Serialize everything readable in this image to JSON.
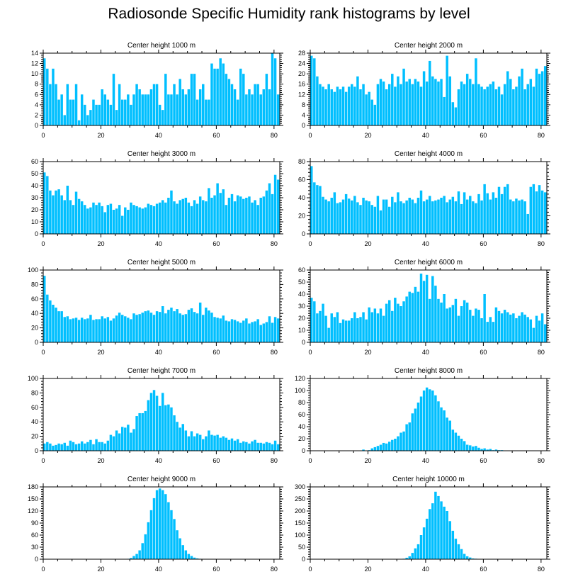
{
  "title": "Radiosonde Specific Humidity rank histograms by level",
  "colors": {
    "bar": "#00bfff",
    "axis": "#000000"
  },
  "chart_data": [
    {
      "type": "bar",
      "title": "Center height 1000 m",
      "xlabel": "",
      "ylabel": "",
      "xlim": [
        0,
        82
      ],
      "xticks": [
        0,
        20,
        40,
        60,
        80
      ],
      "ylim": [
        0,
        14
      ],
      "yticks": [
        0,
        2,
        4,
        6,
        8,
        10,
        12,
        14
      ],
      "x_start": 0,
      "values": [
        13,
        11,
        8,
        11,
        8,
        5,
        6,
        2,
        8,
        5,
        5,
        8,
        1,
        6,
        4,
        2,
        3,
        5,
        4,
        4,
        7,
        6,
        5,
        4,
        10,
        3,
        8,
        5,
        5,
        6,
        4,
        6,
        8,
        7,
        6,
        6,
        6,
        7,
        8,
        8,
        4,
        3,
        10,
        6,
        6,
        8,
        6,
        9,
        7,
        6,
        7,
        10,
        10,
        5,
        7,
        8,
        5,
        5,
        12,
        11,
        11,
        13,
        12,
        10,
        9,
        8,
        7,
        5,
        11,
        10,
        6,
        7,
        6,
        8,
        8,
        6,
        7,
        10,
        7,
        14,
        13,
        6
      ]
    },
    {
      "type": "bar",
      "title": "Center height 2000 m",
      "xlabel": "",
      "ylabel": "",
      "xlim": [
        0,
        82
      ],
      "xticks": [
        0,
        20,
        40,
        60,
        80
      ],
      "ylim": [
        0,
        28
      ],
      "yticks": [
        0,
        4,
        8,
        12,
        16,
        20,
        24,
        28
      ],
      "x_start": 0,
      "values": [
        27,
        26,
        19,
        16,
        15,
        14,
        16,
        14,
        13,
        15,
        14,
        15,
        13,
        15,
        16,
        15,
        19,
        14,
        16,
        12,
        13,
        10,
        8,
        16,
        18,
        17,
        14,
        16,
        20,
        15,
        19,
        16,
        22,
        17,
        18,
        16,
        18,
        17,
        15,
        21,
        17,
        25,
        19,
        18,
        17,
        18,
        11,
        27,
        19,
        9,
        7,
        14,
        17,
        16,
        20,
        18,
        16,
        26,
        16,
        15,
        14,
        15,
        16,
        17,
        14,
        15,
        12,
        16,
        21,
        18,
        14,
        15,
        19,
        22,
        14,
        16,
        18,
        15,
        22,
        20,
        21,
        23
      ]
    },
    {
      "type": "bar",
      "title": "Center height 3000 m",
      "xlabel": "",
      "ylabel": "",
      "xlim": [
        0,
        82
      ],
      "xticks": [
        0,
        20,
        40,
        60,
        80
      ],
      "ylim": [
        0,
        60
      ],
      "yticks": [
        0,
        10,
        20,
        30,
        40,
        50,
        60
      ],
      "x_start": 0,
      "values": [
        51,
        48,
        36,
        32,
        36,
        37,
        32,
        28,
        40,
        28,
        24,
        35,
        29,
        27,
        24,
        21,
        22,
        26,
        24,
        26,
        23,
        18,
        24,
        25,
        20,
        21,
        24,
        15,
        22,
        20,
        26,
        24,
        23,
        22,
        21,
        22,
        25,
        24,
        23,
        25,
        26,
        28,
        26,
        30,
        36,
        27,
        25,
        28,
        29,
        30,
        26,
        23,
        28,
        25,
        31,
        28,
        27,
        38,
        30,
        32,
        42,
        34,
        37,
        24,
        30,
        33,
        27,
        32,
        31,
        29,
        30,
        31,
        26,
        28,
        24,
        30,
        31,
        36,
        42,
        33,
        49,
        45
      ]
    },
    {
      "type": "bar",
      "title": "Center height 4000 m",
      "xlabel": "",
      "ylabel": "",
      "xlim": [
        0,
        82
      ],
      "xticks": [
        0,
        20,
        40,
        60,
        80
      ],
      "ylim": [
        0,
        80
      ],
      "yticks": [
        0,
        20,
        40,
        60,
        80
      ],
      "x_start": 0,
      "values": [
        75,
        57,
        54,
        53,
        41,
        38,
        36,
        40,
        46,
        34,
        35,
        38,
        44,
        39,
        37,
        42,
        35,
        32,
        40,
        37,
        36,
        32,
        30,
        42,
        26,
        38,
        38,
        30,
        41,
        35,
        46,
        36,
        34,
        37,
        40,
        38,
        34,
        40,
        48,
        36,
        38,
        42,
        36,
        37,
        38,
        40,
        42,
        35,
        38,
        41,
        36,
        47,
        33,
        46,
        38,
        42,
        36,
        34,
        44,
        37,
        55,
        45,
        38,
        46,
        40,
        52,
        44,
        52,
        55,
        38,
        36,
        39,
        37,
        38,
        36,
        22,
        52,
        55,
        47,
        54,
        48,
        46
      ]
    },
    {
      "type": "bar",
      "title": "Center height 5000 m",
      "xlabel": "",
      "ylabel": "",
      "xlim": [
        0,
        82
      ],
      "xticks": [
        0,
        20,
        40,
        60,
        80
      ],
      "ylim": [
        0,
        100
      ],
      "yticks": [
        0,
        20,
        40,
        60,
        80,
        100
      ],
      "x_start": 0,
      "values": [
        92,
        66,
        58,
        52,
        48,
        43,
        43,
        35,
        36,
        32,
        33,
        34,
        31,
        34,
        32,
        33,
        38,
        31,
        32,
        32,
        36,
        33,
        35,
        30,
        33,
        37,
        41,
        38,
        36,
        34,
        32,
        40,
        38,
        39,
        41,
        43,
        44,
        41,
        38,
        43,
        42,
        50,
        40,
        45,
        48,
        43,
        46,
        40,
        38,
        39,
        45,
        47,
        42,
        40,
        55,
        38,
        48,
        44,
        41,
        35,
        34,
        33,
        37,
        30,
        29,
        32,
        31,
        29,
        27,
        30,
        33,
        26,
        28,
        29,
        32,
        24,
        26,
        28,
        36,
        27,
        35,
        33
      ]
    },
    {
      "type": "bar",
      "title": "Center height 6000 m",
      "xlabel": "",
      "ylabel": "",
      "xlim": [
        0,
        82
      ],
      "xticks": [
        0,
        20,
        40,
        60,
        80
      ],
      "ylim": [
        0,
        60
      ],
      "yticks": [
        0,
        10,
        20,
        30,
        40,
        50,
        60
      ],
      "x_start": 0,
      "values": [
        37,
        34,
        24,
        26,
        32,
        22,
        12,
        24,
        21,
        25,
        16,
        19,
        18,
        18,
        20,
        25,
        20,
        21,
        25,
        19,
        29,
        25,
        28,
        24,
        28,
        22,
        32,
        35,
        26,
        37,
        32,
        30,
        34,
        38,
        42,
        41,
        46,
        42,
        57,
        51,
        56,
        36,
        55,
        47,
        36,
        33,
        40,
        28,
        29,
        31,
        36,
        22,
        30,
        35,
        33,
        27,
        22,
        28,
        27,
        20,
        40,
        17,
        21,
        17,
        29,
        26,
        24,
        27,
        25,
        23,
        24,
        20,
        22,
        25,
        23,
        21,
        19,
        12,
        22,
        18,
        24,
        15
      ]
    },
    {
      "type": "bar",
      "title": "Center height 7000 m",
      "xlabel": "",
      "ylabel": "",
      "xlim": [
        0,
        82
      ],
      "xticks": [
        0,
        20,
        40,
        60,
        80
      ],
      "ylim": [
        0,
        100
      ],
      "yticks": [
        0,
        20,
        40,
        60,
        80,
        100
      ],
      "x_start": 0,
      "values": [
        10,
        12,
        10,
        7,
        8,
        10,
        9,
        11,
        7,
        14,
        12,
        9,
        10,
        13,
        10,
        12,
        15,
        9,
        16,
        12,
        12,
        10,
        14,
        22,
        20,
        28,
        24,
        33,
        32,
        36,
        25,
        30,
        48,
        52,
        52,
        55,
        70,
        80,
        84,
        76,
        62,
        80,
        63,
        64,
        60,
        49,
        40,
        32,
        37,
        28,
        20,
        27,
        20,
        24,
        22,
        16,
        20,
        28,
        22,
        21,
        22,
        18,
        20,
        18,
        15,
        17,
        14,
        16,
        11,
        13,
        12,
        10,
        13,
        15,
        11,
        11,
        10,
        12,
        11,
        9,
        14,
        9
      ]
    },
    {
      "type": "bar",
      "title": "Center height 8000 m",
      "xlabel": "",
      "ylabel": "",
      "xlim": [
        0,
        82
      ],
      "xticks": [
        0,
        20,
        40,
        60,
        80
      ],
      "ylim": [
        0,
        120
      ],
      "yticks": [
        0,
        20,
        40,
        60,
        80,
        100,
        120
      ],
      "x_start": 0,
      "values": [
        0,
        0,
        0,
        0,
        0,
        0,
        0,
        0,
        0,
        0,
        0,
        0,
        0,
        0,
        0,
        0,
        0,
        0,
        2,
        0,
        1,
        4,
        6,
        8,
        10,
        13,
        12,
        15,
        18,
        20,
        24,
        30,
        32,
        44,
        47,
        62,
        70,
        80,
        90,
        100,
        105,
        102,
        100,
        92,
        82,
        72,
        67,
        55,
        50,
        35,
        30,
        25,
        20,
        16,
        10,
        9,
        7,
        8,
        5,
        3,
        4,
        2,
        3,
        1,
        2,
        1,
        1,
        0,
        0,
        0,
        0,
        0,
        0,
        0,
        0,
        0,
        0,
        0,
        0,
        0,
        0,
        0
      ]
    },
    {
      "type": "bar",
      "title": "Center height 9000 m",
      "xlabel": "",
      "ylabel": "",
      "xlim": [
        0,
        82
      ],
      "xticks": [
        0,
        20,
        40,
        60,
        80
      ],
      "ylim": [
        0,
        180
      ],
      "yticks": [
        0,
        30,
        60,
        90,
        120,
        150,
        180
      ],
      "x_start": 0,
      "values": [
        0,
        0,
        0,
        0,
        0,
        0,
        0,
        0,
        0,
        0,
        0,
        0,
        0,
        0,
        0,
        0,
        0,
        0,
        0,
        0,
        0,
        0,
        0,
        0,
        0,
        0,
        0,
        0,
        0,
        1,
        3,
        8,
        13,
        22,
        40,
        62,
        92,
        122,
        152,
        172,
        176,
        172,
        162,
        142,
        122,
        100,
        72,
        52,
        35,
        22,
        13,
        8,
        4,
        2,
        1,
        0,
        0,
        0,
        0,
        0,
        0,
        0,
        0,
        0,
        0,
        0,
        0,
        0,
        0,
        0,
        0,
        0,
        0,
        0,
        0,
        0,
        0,
        0,
        0,
        0,
        0,
        0
      ]
    },
    {
      "type": "bar",
      "title": "Center height 10000 m",
      "xlabel": "",
      "ylabel": "",
      "xlim": [
        0,
        82
      ],
      "xticks": [
        0,
        20,
        40,
        60,
        80
      ],
      "ylim": [
        0,
        300
      ],
      "yticks": [
        0,
        50,
        100,
        150,
        200,
        250,
        300
      ],
      "x_start": 0,
      "values": [
        0,
        0,
        0,
        0,
        0,
        0,
        0,
        0,
        0,
        0,
        0,
        0,
        0,
        0,
        0,
        0,
        0,
        0,
        0,
        0,
        0,
        0,
        0,
        0,
        0,
        0,
        0,
        0,
        0,
        0,
        0,
        0,
        2,
        6,
        12,
        26,
        45,
        62,
        100,
        132,
        168,
        208,
        232,
        280,
        262,
        240,
        218,
        200,
        158,
        118,
        85,
        62,
        42,
        22,
        12,
        7,
        3,
        2,
        1,
        0,
        0,
        0,
        0,
        0,
        0,
        0,
        0,
        0,
        0,
        0,
        0,
        0,
        0,
        0,
        0,
        0,
        0,
        0,
        0,
        0,
        0,
        0
      ]
    }
  ]
}
